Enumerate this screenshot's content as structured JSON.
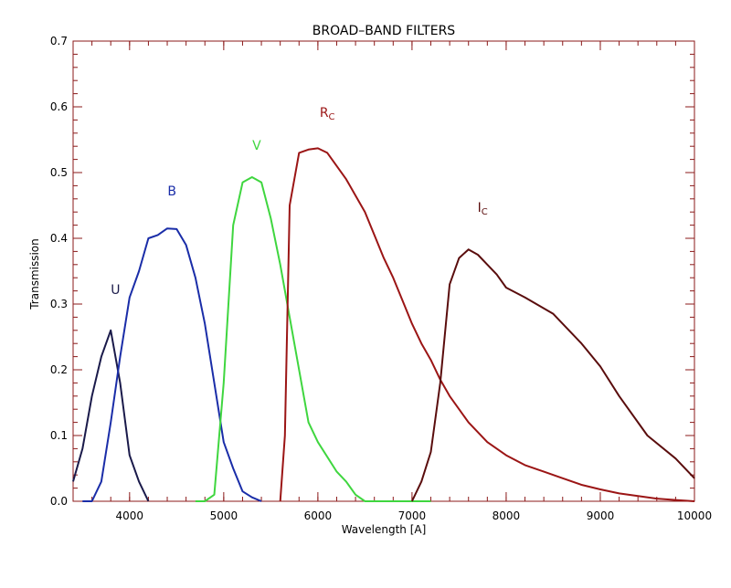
{
  "chart_data": {
    "type": "line",
    "title": "BROAD–BAND FILTERS",
    "xlabel": "Wavelength [A]",
    "ylabel": "Transmission",
    "xlim": [
      3400,
      10000
    ],
    "ylim": [
      0.0,
      0.7
    ],
    "x_ticks": [
      4000,
      5000,
      6000,
      7000,
      8000,
      9000,
      10000
    ],
    "y_ticks": [
      0.0,
      0.1,
      0.2,
      0.3,
      0.4,
      0.5,
      0.6,
      0.7
    ],
    "axis_color": "#8b1a1a",
    "grid": false,
    "series": [
      {
        "name": "U",
        "color": "#1a1a4a",
        "label_pos": [
          3850,
          0.315
        ],
        "points": [
          [
            3400,
            0.03
          ],
          [
            3500,
            0.08
          ],
          [
            3600,
            0.16
          ],
          [
            3700,
            0.22
          ],
          [
            3800,
            0.26
          ],
          [
            3900,
            0.18
          ],
          [
            4000,
            0.07
          ],
          [
            4100,
            0.03
          ],
          [
            4200,
            0.0
          ]
        ]
      },
      {
        "name": "B",
        "color": "#1a2da8",
        "label_pos": [
          4450,
          0.465
        ],
        "points": [
          [
            3500,
            0.0
          ],
          [
            3600,
            0.0
          ],
          [
            3700,
            0.03
          ],
          [
            3800,
            0.12
          ],
          [
            3900,
            0.22
          ],
          [
            4000,
            0.31
          ],
          [
            4100,
            0.35
          ],
          [
            4200,
            0.4
          ],
          [
            4300,
            0.405
          ],
          [
            4400,
            0.415
          ],
          [
            4500,
            0.414
          ],
          [
            4600,
            0.39
          ],
          [
            4700,
            0.34
          ],
          [
            4800,
            0.27
          ],
          [
            4900,
            0.18
          ],
          [
            5000,
            0.09
          ],
          [
            5100,
            0.05
          ],
          [
            5200,
            0.015
          ],
          [
            5300,
            0.006
          ],
          [
            5400,
            0.0
          ]
        ]
      },
      {
        "name": "V",
        "color": "#3fd63f",
        "label_pos": [
          5350,
          0.535
        ],
        "points": [
          [
            4700,
            0.0
          ],
          [
            4800,
            0.0
          ],
          [
            4900,
            0.01
          ],
          [
            5000,
            0.18
          ],
          [
            5100,
            0.42
          ],
          [
            5200,
            0.485
          ],
          [
            5300,
            0.493
          ],
          [
            5400,
            0.485
          ],
          [
            5500,
            0.43
          ],
          [
            5600,
            0.36
          ],
          [
            5700,
            0.28
          ],
          [
            5800,
            0.2
          ],
          [
            5900,
            0.12
          ],
          [
            6000,
            0.09
          ],
          [
            6200,
            0.045
          ],
          [
            6300,
            0.03
          ],
          [
            6400,
            0.01
          ],
          [
            6500,
            0.0
          ],
          [
            7200,
            0.0
          ]
        ]
      },
      {
        "name": "R",
        "sub": "C",
        "color": "#9b1515",
        "label_pos": [
          6100,
          0.585
        ],
        "points": [
          [
            5600,
            0.0
          ],
          [
            5650,
            0.1
          ],
          [
            5700,
            0.45
          ],
          [
            5800,
            0.53
          ],
          [
            5900,
            0.535
          ],
          [
            6000,
            0.537
          ],
          [
            6100,
            0.53
          ],
          [
            6200,
            0.51
          ],
          [
            6300,
            0.49
          ],
          [
            6400,
            0.465
          ],
          [
            6500,
            0.44
          ],
          [
            6600,
            0.405
          ],
          [
            6700,
            0.37
          ],
          [
            6800,
            0.34
          ],
          [
            6900,
            0.305
          ],
          [
            7000,
            0.27
          ],
          [
            7100,
            0.24
          ],
          [
            7200,
            0.215
          ],
          [
            7300,
            0.185
          ],
          [
            7400,
            0.16
          ],
          [
            7500,
            0.14
          ],
          [
            7600,
            0.12
          ],
          [
            7800,
            0.09
          ],
          [
            8000,
            0.07
          ],
          [
            8200,
            0.055
          ],
          [
            8400,
            0.045
          ],
          [
            8600,
            0.035
          ],
          [
            8800,
            0.025
          ],
          [
            9000,
            0.018
          ],
          [
            9200,
            0.012
          ],
          [
            9400,
            0.008
          ],
          [
            9600,
            0.004
          ],
          [
            9800,
            0.002
          ],
          [
            10000,
            0.0
          ]
        ]
      },
      {
        "name": "I",
        "sub": "C",
        "color": "#5a0d0d",
        "label_pos": [
          7750,
          0.44
        ],
        "points": [
          [
            7000,
            0.0
          ],
          [
            7100,
            0.03
          ],
          [
            7200,
            0.075
          ],
          [
            7300,
            0.18
          ],
          [
            7400,
            0.33
          ],
          [
            7500,
            0.37
          ],
          [
            7600,
            0.383
          ],
          [
            7700,
            0.375
          ],
          [
            7800,
            0.36
          ],
          [
            7900,
            0.345
          ],
          [
            8000,
            0.325
          ],
          [
            8200,
            0.31
          ],
          [
            8500,
            0.285
          ],
          [
            8800,
            0.24
          ],
          [
            9000,
            0.205
          ],
          [
            9200,
            0.16
          ],
          [
            9500,
            0.1
          ],
          [
            9800,
            0.065
          ],
          [
            10000,
            0.035
          ]
        ]
      }
    ]
  }
}
